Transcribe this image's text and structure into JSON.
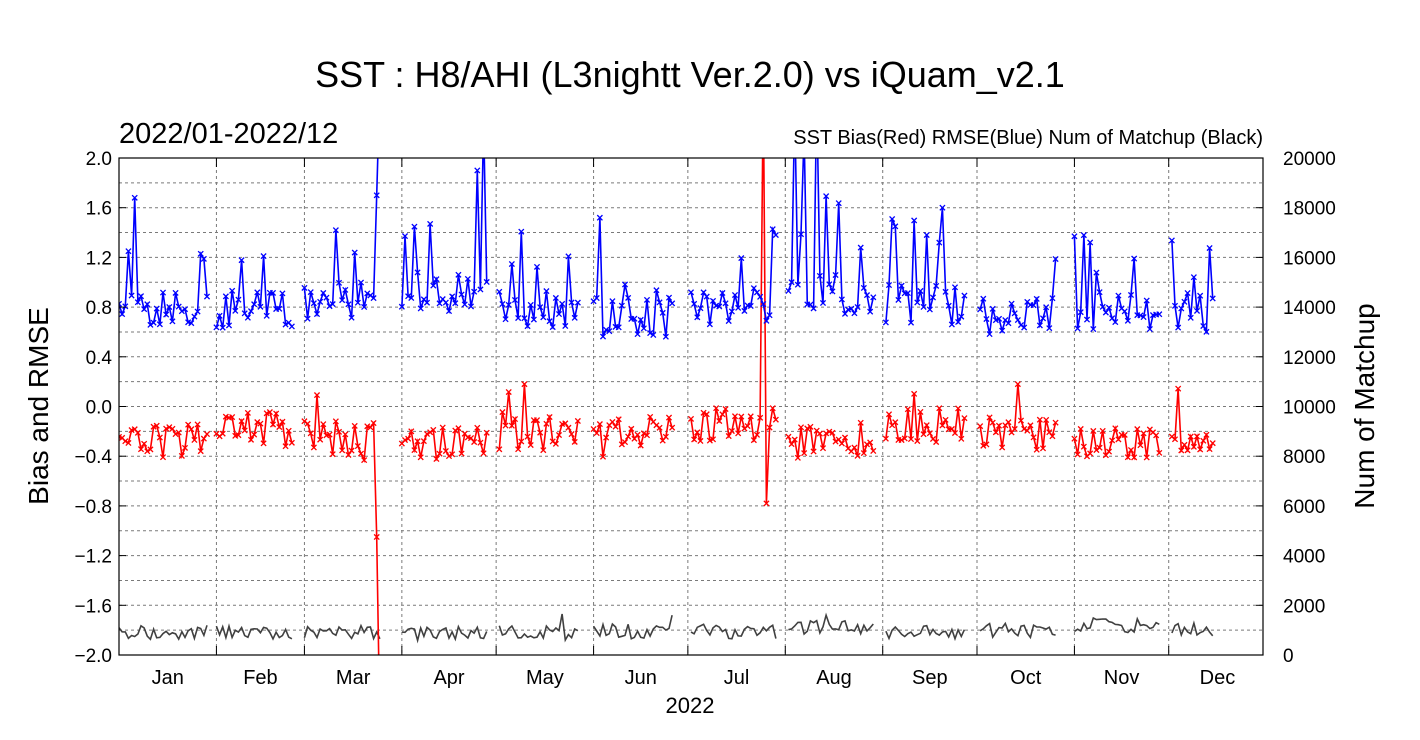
{
  "chart_data": {
    "type": "line",
    "title": "SST : H8/AHI (L3nightt Ver.2.0) vs iQuam_v2.1",
    "period": "2022/01-2022/12",
    "legend_text": "SST Bias(Red)  RMSE(Blue)  Num of Matchup (Black)",
    "xlabel": "2022",
    "ylabel_left": "Bias and RMSE",
    "ylabel_right": "Num of Matchup",
    "ylim_left": [
      -2.0,
      2.0
    ],
    "ylim_right": [
      0,
      20000
    ],
    "xlim_days": [
      0,
      364
    ],
    "grid": true,
    "yticks_left": [
      "2.0",
      "1.6",
      "1.2",
      "0.8",
      "0.4",
      "0.0",
      "−0.4",
      "−0.8",
      "−1.2",
      "−1.6",
      "−2.0"
    ],
    "yticks_right": [
      "20000",
      "18000",
      "16000",
      "14000",
      "12000",
      "10000",
      "8000",
      "6000",
      "4000",
      "2000",
      "0"
    ],
    "months": [
      "Jan",
      "Feb",
      "Mar",
      "Apr",
      "May",
      "Jun",
      "Jul",
      "Aug",
      "Sep",
      "Oct",
      "Nov",
      "Dec"
    ],
    "colors": {
      "bias": "#ff0000",
      "rmse": "#0000ff",
      "count": "#404040"
    },
    "series": [
      {
        "key": "rmse",
        "color": "#0000ff",
        "marker": "x"
      },
      {
        "key": "bias",
        "color": "#ff0000",
        "marker": "x"
      },
      {
        "key": "count",
        "color": "#404040",
        "marker": "none"
      }
    ]
  }
}
